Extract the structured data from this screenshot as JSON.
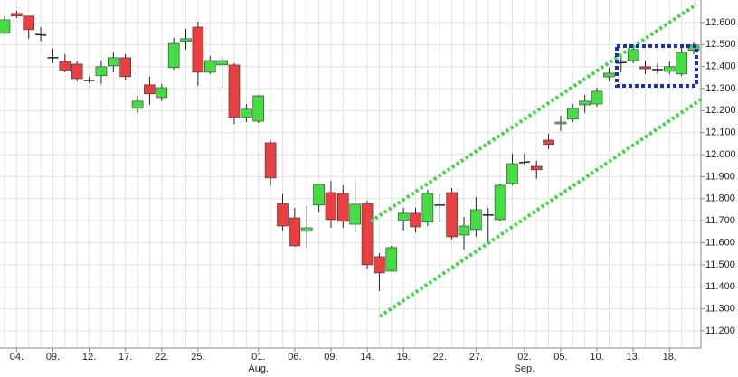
{
  "chart_data": {
    "type": "candlestick",
    "categories": [
      null,
      "04.",
      null,
      null,
      "09.",
      null,
      null,
      "12.",
      null,
      null,
      "17.",
      null,
      null,
      "22.",
      null,
      null,
      "25.",
      null,
      null,
      null,
      null,
      "01.",
      null,
      null,
      "06.",
      null,
      null,
      "09.",
      null,
      null,
      "14.",
      null,
      null,
      "19.",
      null,
      null,
      "22.",
      null,
      null,
      "27.",
      null,
      null,
      null,
      "02.",
      null,
      null,
      "05.",
      null,
      null,
      "10.",
      null,
      null,
      "13.",
      null,
      null,
      "18.",
      null,
      null
    ],
    "month_labels": [
      null,
      null,
      null,
      null,
      null,
      null,
      null,
      null,
      null,
      null,
      null,
      null,
      null,
      null,
      null,
      null,
      null,
      null,
      null,
      null,
      null,
      "Aug.",
      null,
      null,
      null,
      null,
      null,
      null,
      null,
      null,
      null,
      null,
      null,
      null,
      null,
      null,
      null,
      null,
      null,
      null,
      null,
      null,
      null,
      "Sep.",
      null,
      null,
      null,
      null,
      null,
      null,
      null,
      null,
      null,
      null,
      null,
      null,
      null,
      null
    ],
    "open": [
      12.551,
      12.641,
      12.629,
      12.546,
      12.44,
      12.423,
      12.411,
      12.337,
      12.358,
      12.403,
      12.44,
      12.21,
      12.317,
      12.259,
      12.395,
      12.514,
      12.579,
      12.374,
      12.407,
      12.407,
      12.169,
      12.152,
      12.054,
      11.779,
      11.713,
      11.652,
      11.771,
      11.828,
      11.824,
      11.684,
      11.779,
      11.537,
      11.471,
      11.701,
      11.734,
      11.693,
      11.771,
      11.828,
      11.635,
      11.66,
      11.726,
      11.705,
      11.869,
      11.963,
      11.947,
      12.066,
      12.14,
      12.161,
      12.226,
      12.23,
      12.353,
      12.415,
      12.427,
      12.399,
      12.386,
      12.378,
      12.366,
      12.473
    ],
    "high": [
      12.629,
      12.653,
      12.629,
      12.579,
      12.481,
      12.456,
      12.423,
      12.354,
      12.427,
      12.464,
      12.456,
      12.267,
      12.354,
      12.321,
      12.53,
      12.571,
      12.604,
      12.448,
      12.448,
      12.415,
      12.23,
      12.271,
      12.066,
      11.82,
      11.758,
      11.767,
      11.865,
      11.881,
      11.861,
      11.881,
      11.791,
      11.553,
      11.586,
      11.758,
      11.758,
      11.84,
      11.82,
      11.849,
      11.717,
      11.808,
      11.758,
      11.869,
      12.005,
      12.005,
      11.972,
      12.095,
      12.177,
      12.23,
      12.271,
      12.304,
      12.395,
      12.456,
      12.497,
      12.427,
      12.415,
      12.423,
      12.489,
      12.509
    ],
    "low": [
      12.546,
      12.62,
      12.526,
      12.514,
      12.415,
      12.374,
      12.333,
      12.325,
      12.321,
      12.374,
      12.341,
      12.189,
      12.226,
      12.243,
      12.386,
      12.477,
      12.313,
      12.366,
      12.304,
      12.14,
      12.148,
      12.144,
      11.861,
      11.656,
      11.582,
      11.574,
      11.738,
      11.668,
      11.668,
      11.647,
      11.483,
      11.381,
      11.471,
      11.656,
      11.647,
      11.676,
      11.693,
      11.615,
      11.569,
      11.627,
      11.594,
      11.697,
      11.861,
      11.951,
      11.89,
      12.025,
      12.107,
      12.148,
      12.189,
      12.218,
      12.333,
      12.374,
      12.415,
      12.366,
      12.366,
      12.366,
      12.358,
      12.456
    ],
    "close": [
      12.612,
      12.629,
      12.567,
      12.542,
      12.44,
      12.382,
      12.345,
      12.337,
      12.399,
      12.44,
      12.354,
      12.243,
      12.276,
      12.304,
      12.505,
      12.526,
      12.374,
      12.427,
      12.427,
      12.169,
      12.206,
      12.267,
      11.894,
      11.676,
      11.586,
      11.668,
      11.865,
      11.705,
      11.697,
      11.775,
      11.5,
      11.463,
      11.578,
      11.734,
      11.672,
      11.824,
      11.771,
      11.627,
      11.676,
      11.75,
      11.726,
      11.861,
      11.959,
      11.968,
      11.931,
      12.046,
      12.148,
      12.21,
      12.243,
      12.288,
      12.37,
      12.419,
      12.477,
      12.39,
      12.386,
      12.399,
      12.464,
      12.497
    ],
    "up_color": "#44dd44",
    "down_color": "#e84040",
    "ylim": [
      11.122,
      12.702
    ],
    "yticks": [
      {
        "value": 11.2,
        "label": "11.200"
      },
      {
        "value": 11.3,
        "label": "11.300"
      },
      {
        "value": 11.4,
        "label": "11.400"
      },
      {
        "value": 11.5,
        "label": "11.500"
      },
      {
        "value": 11.6,
        "label": "11.600"
      },
      {
        "value": 11.7,
        "label": "11.700"
      },
      {
        "value": 11.8,
        "label": "11.800"
      },
      {
        "value": 11.9,
        "label": "11.900"
      },
      {
        "value": 12.0,
        "label": "12.000"
      },
      {
        "value": 12.1,
        "label": "12.100"
      },
      {
        "value": 12.2,
        "label": "12.200"
      },
      {
        "value": 12.3,
        "label": "12.300"
      },
      {
        "value": 12.4,
        "label": "12.400"
      },
      {
        "value": 12.5,
        "label": "12.500"
      },
      {
        "value": 12.6,
        "label": "12.600"
      }
    ],
    "grid": true
  }
}
